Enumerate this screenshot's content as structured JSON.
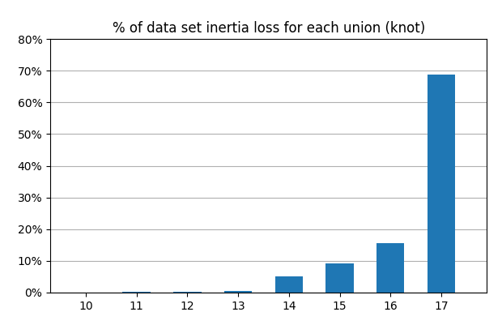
{
  "chart_data": {
    "type": "bar",
    "title": "% of data set inertia loss for each union (knot)",
    "x": [
      10,
      11,
      12,
      13,
      14,
      15,
      16,
      17
    ],
    "values": [
      0.082,
      0.21,
      0.287,
      0.594,
      5.214,
      9.242,
      15.474,
      68.896
    ],
    "xlim": [
      9.3,
      17.9
    ],
    "xticks": [
      10,
      11,
      12,
      13,
      14,
      15,
      16,
      17
    ],
    "ylim": [
      0,
      80
    ],
    "yticks": [
      {
        "value": 0,
        "label": "0%"
      },
      {
        "value": 10,
        "label": "10%"
      },
      {
        "value": 20,
        "label": "20%"
      },
      {
        "value": 30,
        "label": "30%"
      },
      {
        "value": 40,
        "label": "40%"
      },
      {
        "value": 50,
        "label": "50%"
      },
      {
        "value": 60,
        "label": "60%"
      },
      {
        "value": 70,
        "label": "70%"
      },
      {
        "value": 80,
        "label": "80%"
      }
    ],
    "grid": true
  }
}
